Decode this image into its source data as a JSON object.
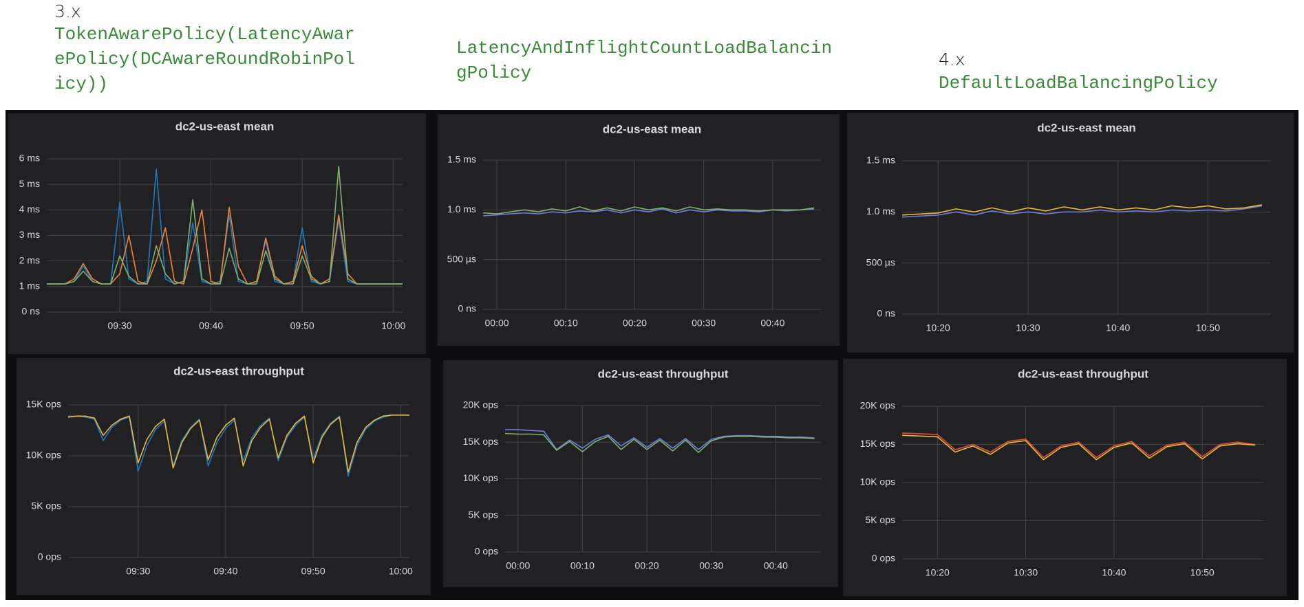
{
  "headings": [
    {
      "version": "3.x",
      "policy": "TokenAwarePolicy(LatencyAwarePolicy(DCAwareRoundRobinPolicy))"
    },
    {
      "policy": "LatencyAndInflightCountLoadBalancingPolicy"
    },
    {
      "version": "4.x",
      "policy": "DefaultLoadBalancingPolicy"
    }
  ],
  "chart_data": [
    {
      "type": "line",
      "title": "dc2-us-east mean",
      "x": [
        "09:22",
        "09:23",
        "09:24",
        "09:25",
        "09:26",
        "09:27",
        "09:28",
        "09:29",
        "09:30",
        "09:31",
        "09:32",
        "09:33",
        "09:34",
        "09:35",
        "09:36",
        "09:37",
        "09:38",
        "09:39",
        "09:40",
        "09:41",
        "09:42",
        "09:43",
        "09:44",
        "09:45",
        "09:46",
        "09:47",
        "09:48",
        "09:49",
        "09:50",
        "09:51",
        "09:52",
        "09:53",
        "09:54",
        "09:55",
        "09:56",
        "09:57",
        "09:58",
        "09:59",
        "10:00",
        "10:01"
      ],
      "xlim": [
        "09:22",
        "10:01"
      ],
      "xticks": [
        "09:30",
        "09:40",
        "09:50",
        "10:00"
      ],
      "ylim": [
        0,
        6
      ],
      "yticks": [
        {
          "value": 0,
          "label": "0 ns"
        },
        {
          "value": 1,
          "label": "1 ms"
        },
        {
          "value": 2,
          "label": "2 ms"
        },
        {
          "value": 3,
          "label": "3 ms"
        },
        {
          "value": 4,
          "label": "4 ms"
        },
        {
          "value": 5,
          "label": "5 ms"
        },
        {
          "value": 6,
          "label": "6 ms"
        }
      ],
      "grid": true,
      "series": [
        {
          "color": "#1f78c1",
          "values": [
            1.1,
            1.1,
            1.1,
            1.2,
            1.8,
            1.2,
            1.1,
            1.1,
            4.3,
            1.3,
            1.1,
            1.2,
            5.6,
            1.3,
            1.1,
            1.2,
            3.5,
            1.2,
            1.1,
            1.2,
            3.8,
            1.2,
            1.1,
            1.2,
            2.8,
            1.2,
            1.1,
            1.2,
            3.3,
            1.2,
            1.1,
            1.2,
            3.6,
            1.2,
            1.1,
            1.1,
            1.1,
            1.1,
            1.1,
            1.1
          ]
        },
        {
          "color": "#ef843c",
          "values": [
            1.1,
            1.1,
            1.1,
            1.3,
            1.9,
            1.3,
            1.1,
            1.1,
            1.5,
            3.0,
            1.2,
            1.1,
            2.0,
            3.3,
            1.2,
            1.1,
            2.5,
            4.0,
            1.2,
            1.1,
            4.1,
            1.8,
            1.1,
            1.2,
            2.9,
            1.4,
            1.1,
            1.2,
            2.6,
            1.4,
            1.1,
            1.3,
            3.8,
            1.5,
            1.1,
            1.1,
            1.1,
            1.1,
            1.1,
            1.1
          ]
        },
        {
          "color": "#7eb26d",
          "values": [
            1.1,
            1.1,
            1.1,
            1.2,
            1.6,
            1.2,
            1.1,
            1.1,
            2.2,
            1.4,
            1.1,
            1.1,
            2.6,
            1.5,
            1.1,
            1.2,
            4.4,
            1.3,
            1.1,
            1.1,
            2.5,
            1.3,
            1.1,
            1.1,
            2.4,
            1.3,
            1.1,
            1.1,
            2.2,
            1.3,
            1.1,
            1.2,
            5.7,
            1.3,
            1.1,
            1.1,
            1.1,
            1.1,
            1.1,
            1.1
          ]
        }
      ]
    },
    {
      "type": "line",
      "title": "dc2-us-east mean",
      "x": [
        "23:58",
        "00:00",
        "00:02",
        "00:04",
        "00:06",
        "00:08",
        "00:10",
        "00:12",
        "00:14",
        "00:16",
        "00:18",
        "00:20",
        "00:22",
        "00:24",
        "00:26",
        "00:28",
        "00:30",
        "00:32",
        "00:34",
        "00:36",
        "00:38",
        "00:40",
        "00:42",
        "00:44",
        "00:46"
      ],
      "xlim": [
        "23:58",
        "00:47"
      ],
      "xticks": [
        "00:00",
        "00:10",
        "00:20",
        "00:30",
        "00:40"
      ],
      "ylim": [
        0,
        1.5
      ],
      "yticks": [
        {
          "value": 0,
          "label": "0 ns"
        },
        {
          "value": 0.5,
          "label": "500 µs"
        },
        {
          "value": 1,
          "label": "1.0 ms"
        },
        {
          "value": 1.5,
          "label": "1.5 ms"
        }
      ],
      "grid": true,
      "series": [
        {
          "color": "#6d7ee0",
          "values": [
            0.94,
            0.95,
            0.96,
            0.97,
            0.96,
            0.98,
            0.97,
            0.99,
            0.98,
            1.0,
            0.97,
            1.0,
            0.98,
            1.01,
            0.97,
            1.0,
            0.98,
            1.0,
            0.99,
            0.99,
            0.98,
            1.0,
            0.99,
            1.0,
            1.01
          ]
        },
        {
          "color": "#7eb26d",
          "values": [
            0.97,
            0.96,
            0.98,
            1.0,
            0.98,
            1.01,
            0.99,
            1.03,
            0.99,
            1.02,
            0.99,
            1.03,
            1.0,
            1.02,
            0.99,
            1.03,
            1.0,
            1.01,
            1.0,
            1.0,
            0.99,
            1.0,
            1.0,
            1.0,
            1.02
          ]
        }
      ]
    },
    {
      "type": "line",
      "title": "dc2-us-east mean",
      "x": [
        "10:16",
        "10:18",
        "10:20",
        "10:22",
        "10:24",
        "10:26",
        "10:28",
        "10:30",
        "10:32",
        "10:34",
        "10:36",
        "10:38",
        "10:40",
        "10:42",
        "10:44",
        "10:46",
        "10:48",
        "10:50",
        "10:52",
        "10:54",
        "10:56"
      ],
      "xlim": [
        "10:16",
        "10:57"
      ],
      "xticks": [
        "10:20",
        "10:30",
        "10:40",
        "10:50"
      ],
      "ylim": [
        0,
        1.5
      ],
      "yticks": [
        {
          "value": 0,
          "label": "0 ns"
        },
        {
          "value": 0.5,
          "label": "500 µs"
        },
        {
          "value": 1,
          "label": "1.0 ms"
        },
        {
          "value": 1.5,
          "label": "1.5 ms"
        }
      ],
      "grid": true,
      "series": [
        {
          "color": "#6d7ee0",
          "values": [
            0.95,
            0.96,
            0.97,
            1.0,
            0.97,
            1.01,
            0.98,
            1.0,
            0.98,
            1.0,
            1.0,
            1.02,
            1.0,
            1.01,
            1.0,
            1.02,
            1.01,
            1.02,
            1.01,
            1.03,
            1.06
          ]
        },
        {
          "color": "#eab839",
          "values": [
            0.97,
            0.98,
            0.99,
            1.03,
            1.0,
            1.04,
            1.0,
            1.04,
            1.01,
            1.05,
            1.02,
            1.05,
            1.02,
            1.04,
            1.02,
            1.06,
            1.04,
            1.06,
            1.03,
            1.04,
            1.07
          ]
        }
      ]
    },
    {
      "type": "line",
      "title": "dc2-us-east throughput",
      "x": [
        "09:22",
        "09:23",
        "09:24",
        "09:25",
        "09:26",
        "09:27",
        "09:28",
        "09:29",
        "09:30",
        "09:31",
        "09:32",
        "09:33",
        "09:34",
        "09:35",
        "09:36",
        "09:37",
        "09:38",
        "09:39",
        "09:40",
        "09:41",
        "09:42",
        "09:43",
        "09:44",
        "09:45",
        "09:46",
        "09:47",
        "09:48",
        "09:49",
        "09:50",
        "09:51",
        "09:52",
        "09:53",
        "09:54",
        "09:55",
        "09:56",
        "09:57",
        "09:58",
        "09:59",
        "10:00",
        "10:01"
      ],
      "xlim": [
        "09:22",
        "10:01"
      ],
      "xticks": [
        "09:30",
        "09:40",
        "09:50",
        "10:00"
      ],
      "ylim": [
        0,
        15000
      ],
      "yticks": [
        {
          "value": 0,
          "label": "0 ops"
        },
        {
          "value": 5000,
          "label": "5K ops"
        },
        {
          "value": 10000,
          "label": "10K ops"
        },
        {
          "value": 15000,
          "label": "15K ops"
        }
      ],
      "grid": true,
      "series": [
        {
          "color": "#1f78c1",
          "values": [
            13900,
            13900,
            13800,
            13600,
            11500,
            12800,
            13500,
            13800,
            8500,
            11000,
            12600,
            13400,
            9000,
            11500,
            12800,
            13600,
            9000,
            11300,
            12700,
            13500,
            9500,
            11800,
            13000,
            13700,
            9500,
            11800,
            13000,
            13800,
            9700,
            12000,
            13200,
            13900,
            8000,
            11000,
            12600,
            13400,
            13800,
            14000,
            14000,
            14000
          ]
        },
        {
          "color": "#eab839",
          "values": [
            13800,
            13900,
            13900,
            13700,
            12000,
            13000,
            13600,
            13900,
            9300,
            11600,
            12900,
            13600,
            8800,
            11300,
            12700,
            13500,
            9600,
            11800,
            13000,
            13700,
            9000,
            11500,
            12800,
            13600,
            9800,
            12000,
            13200,
            13900,
            9300,
            11800,
            13100,
            13800,
            8400,
            11300,
            12800,
            13500,
            13900,
            14000,
            14000,
            14000
          ]
        }
      ]
    },
    {
      "type": "line",
      "title": "dc2-us-east throughput",
      "x": [
        "23:58",
        "00:00",
        "00:02",
        "00:04",
        "00:06",
        "00:08",
        "00:10",
        "00:12",
        "00:14",
        "00:16",
        "00:18",
        "00:20",
        "00:22",
        "00:24",
        "00:26",
        "00:28",
        "00:30",
        "00:32",
        "00:34",
        "00:36",
        "00:38",
        "00:40",
        "00:42",
        "00:44",
        "00:46"
      ],
      "xlim": [
        "23:58",
        "00:47"
      ],
      "xticks": [
        "00:00",
        "00:10",
        "00:20",
        "00:30",
        "00:40"
      ],
      "ylim": [
        0,
        20000
      ],
      "yticks": [
        {
          "value": 0,
          "label": "0 ops"
        },
        {
          "value": 5000,
          "label": "5K ops"
        },
        {
          "value": 10000,
          "label": "10K ops"
        },
        {
          "value": 15000,
          "label": "15K ops"
        },
        {
          "value": 20000,
          "label": "20K ops"
        }
      ],
      "grid": true,
      "series": [
        {
          "color": "#6d7ee0",
          "values": [
            16700,
            16700,
            16600,
            16500,
            14000,
            15300,
            14200,
            15400,
            16000,
            14500,
            15600,
            14300,
            15500,
            14200,
            15500,
            14000,
            15400,
            15800,
            15900,
            15900,
            15800,
            15800,
            15700,
            15700,
            15600
          ]
        },
        {
          "color": "#7eb26d",
          "values": [
            16200,
            16100,
            16100,
            16000,
            13900,
            15100,
            13700,
            15100,
            15800,
            14000,
            15400,
            14000,
            15300,
            13800,
            15300,
            13600,
            15200,
            15700,
            15800,
            15800,
            15700,
            15700,
            15600,
            15600,
            15500
          ]
        }
      ]
    },
    {
      "type": "line",
      "title": "dc2-us-east throughput",
      "x": [
        "10:16",
        "10:18",
        "10:20",
        "10:22",
        "10:24",
        "10:26",
        "10:28",
        "10:30",
        "10:32",
        "10:34",
        "10:36",
        "10:38",
        "10:40",
        "10:42",
        "10:44",
        "10:46",
        "10:48",
        "10:50",
        "10:52",
        "10:54",
        "10:56"
      ],
      "xlim": [
        "10:16",
        "10:57"
      ],
      "xticks": [
        "10:20",
        "10:30",
        "10:40",
        "10:50"
      ],
      "ylim": [
        0,
        20000
      ],
      "yticks": [
        {
          "value": 0,
          "label": "0 ops"
        },
        {
          "value": 5000,
          "label": "5K ops"
        },
        {
          "value": 10000,
          "label": "10K ops"
        },
        {
          "value": 15000,
          "label": "15K ops"
        },
        {
          "value": 20000,
          "label": "20K ops"
        }
      ],
      "grid": true,
      "series": [
        {
          "color": "#e24d42",
          "values": [
            16500,
            16400,
            16300,
            14300,
            15000,
            14000,
            15400,
            15700,
            13300,
            14800,
            15300,
            13300,
            14800,
            15400,
            13500,
            14900,
            15300,
            13400,
            15000,
            15300,
            15000
          ]
        },
        {
          "color": "#eab839",
          "values": [
            16200,
            16100,
            16000,
            14000,
            14800,
            13700,
            15200,
            15500,
            13000,
            14600,
            15100,
            13000,
            14600,
            15200,
            13200,
            14700,
            15100,
            13100,
            14800,
            15100,
            14900
          ]
        }
      ]
    }
  ]
}
